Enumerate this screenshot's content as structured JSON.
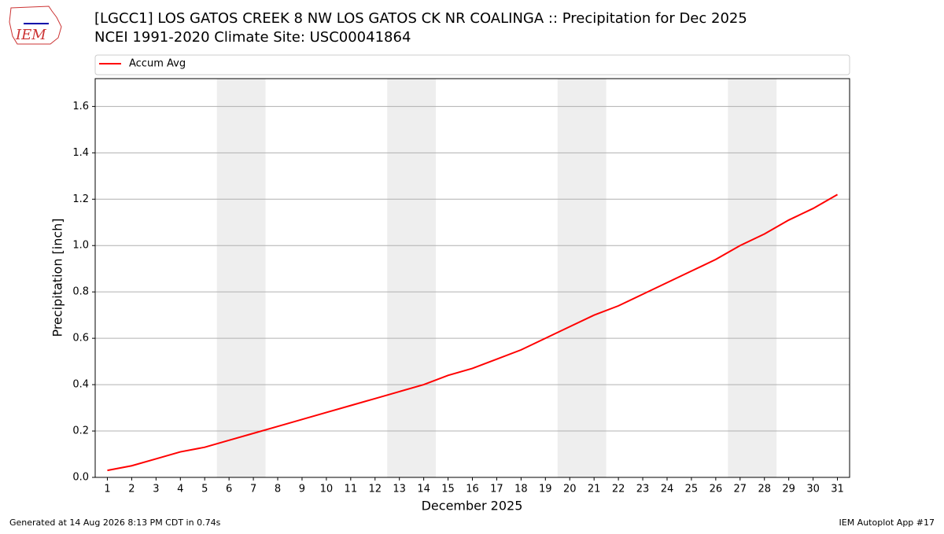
{
  "chart_data": {
    "type": "line",
    "title": "[LGCC1] LOS GATOS CREEK 8 NW LOS GATOS CK NR COALINGA :: Precipitation for Dec 2025",
    "subtitle": "NCEI 1991-2020 Climate Site: USC00041864",
    "xlabel": "December 2025",
    "ylabel": "Precipitation [inch]",
    "x": [
      1,
      2,
      3,
      4,
      5,
      6,
      7,
      8,
      9,
      10,
      11,
      12,
      13,
      14,
      15,
      16,
      17,
      18,
      19,
      20,
      21,
      22,
      23,
      24,
      25,
      26,
      27,
      28,
      29,
      30,
      31
    ],
    "series": [
      {
        "name": "Accum Avg",
        "color": "#ff0000",
        "values": [
          0.03,
          0.05,
          0.08,
          0.11,
          0.13,
          0.16,
          0.19,
          0.22,
          0.25,
          0.28,
          0.31,
          0.34,
          0.37,
          0.4,
          0.44,
          0.47,
          0.51,
          0.55,
          0.6,
          0.65,
          0.7,
          0.74,
          0.79,
          0.84,
          0.89,
          0.94,
          1.0,
          1.05,
          1.11,
          1.16,
          1.22
        ]
      }
    ],
    "shaded_spans": [
      [
        5.5,
        7.5
      ],
      [
        12.5,
        14.5
      ],
      [
        19.5,
        21.5
      ],
      [
        26.5,
        28.5
      ]
    ],
    "xlim": [
      0.5,
      31.5
    ],
    "ylim": [
      0,
      1.72
    ],
    "xticks": [
      1,
      2,
      3,
      4,
      5,
      6,
      7,
      8,
      9,
      10,
      11,
      12,
      13,
      14,
      15,
      16,
      17,
      18,
      19,
      20,
      21,
      22,
      23,
      24,
      25,
      26,
      27,
      28,
      29,
      30,
      31
    ],
    "yticks": [
      {
        "value": 0,
        "label": "0.0"
      },
      0.2,
      0.4,
      0.6,
      0.8,
      {
        "value": 1,
        "label": "1.0"
      },
      1.2,
      1.4,
      1.6
    ],
    "grid": true,
    "legend": "top"
  },
  "logo": "IEM",
  "footer": {
    "left": "Generated at 14 Aug 2026 8:13 PM CDT in 0.74s",
    "right": "IEM Autoplot App #17"
  }
}
